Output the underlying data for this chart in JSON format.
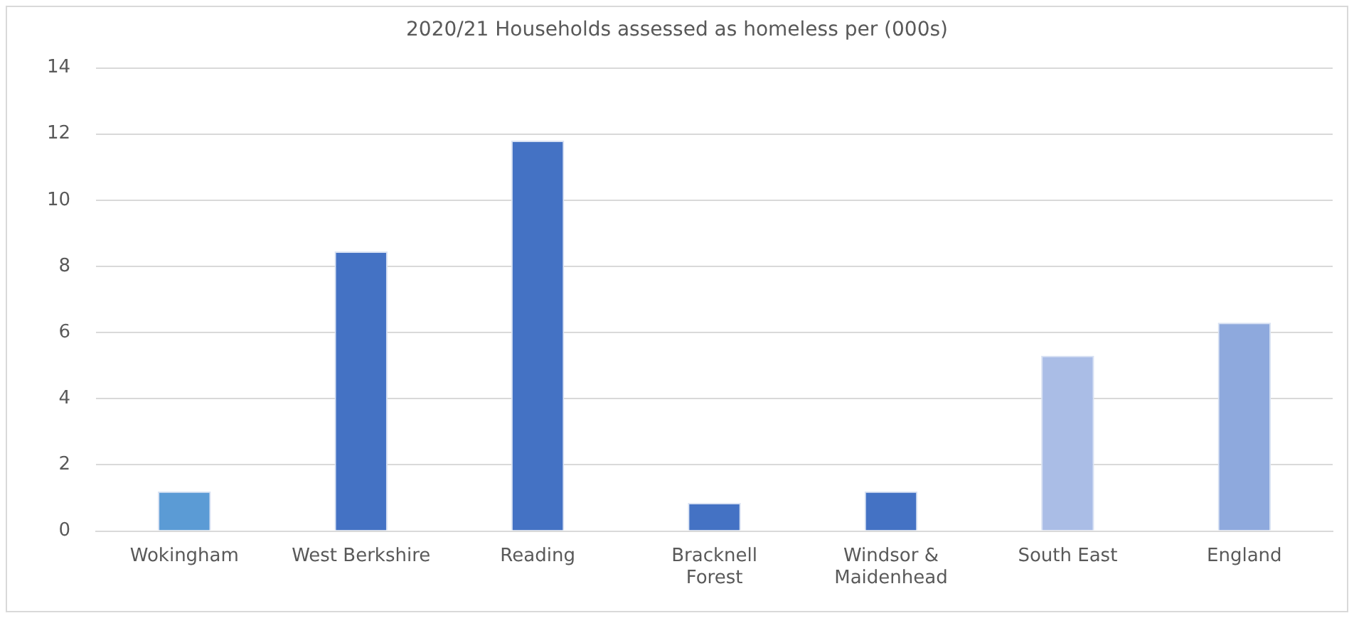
{
  "chart_data": {
    "type": "bar",
    "title": "2020/21 Households assessed as homeless per (000s)",
    "categories": [
      "Wokingham",
      "West Berkshire",
      "Reading",
      "Bracknell Forest",
      "Windsor & Maidenhead",
      "South East",
      "England"
    ],
    "values": [
      1.2,
      8.45,
      11.8,
      0.85,
      1.2,
      5.3,
      6.3
    ],
    "colors": [
      "#5b9bd5",
      "#4472c4",
      "#4472c4",
      "#4472c4",
      "#4472c4",
      "#aabde6",
      "#8ea9dd"
    ],
    "ylim": [
      0,
      14
    ],
    "yticks": [
      0,
      2,
      4,
      6,
      8,
      10,
      12,
      14
    ],
    "grid": "y"
  }
}
